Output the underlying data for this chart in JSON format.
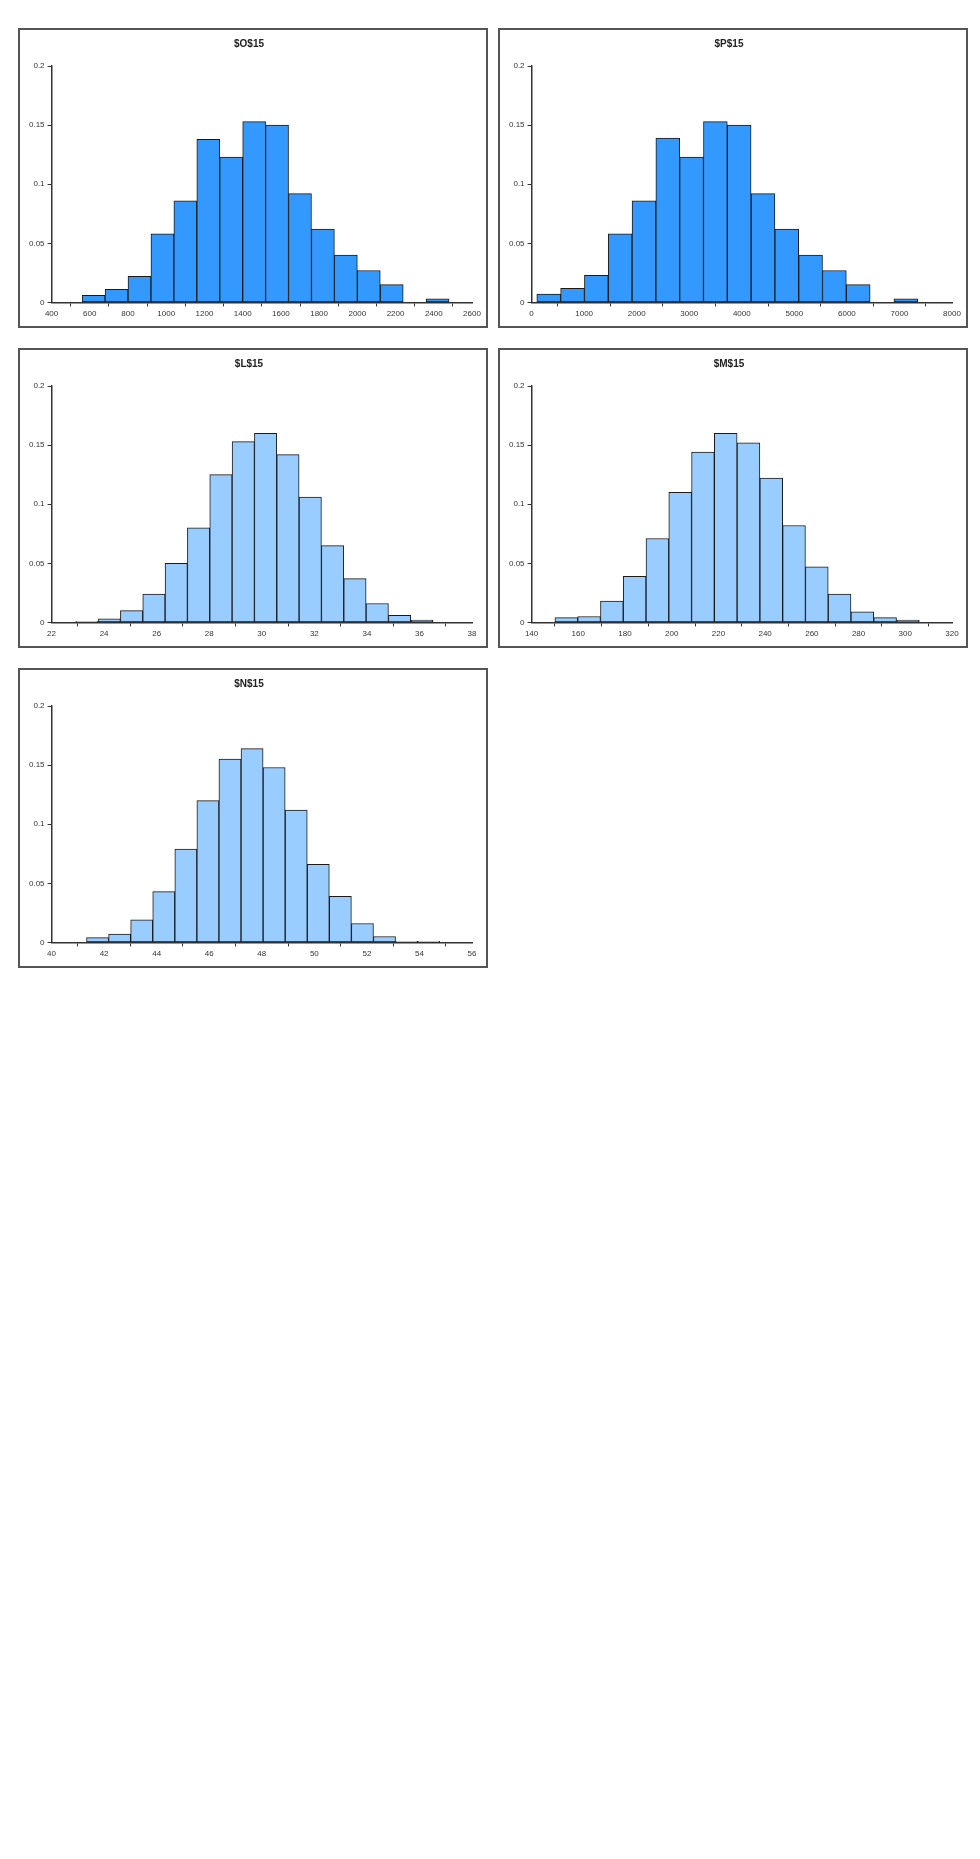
{
  "chart_data": [
    {
      "type": "histogram",
      "title": "$O$15",
      "color": "#3399ff",
      "bins": [
        560,
        680,
        800,
        920,
        1040,
        1160,
        1280,
        1400,
        1520,
        1640,
        1760,
        1880,
        2000,
        2120,
        2240,
        2360,
        2480
      ],
      "values": [
        0.006,
        0.011,
        0.022,
        0.058,
        0.086,
        0.138,
        0.123,
        0.153,
        0.15,
        0.092,
        0.062,
        0.04,
        0.027,
        0.015,
        0,
        0.003
      ],
      "xlim": [
        400,
        2600
      ],
      "xticks": [
        400,
        600,
        800,
        1000,
        1200,
        1400,
        1600,
        1800,
        2000,
        2200,
        2400,
        2600
      ],
      "ylim": [
        0,
        0.2
      ],
      "yticks": [
        0,
        0.05,
        0.1,
        0.15,
        0.2
      ]
    },
    {
      "type": "histogram",
      "title": "$P$15",
      "color": "#3399ff",
      "bins": [
        100,
        553,
        1006,
        1459,
        1912,
        2365,
        2818,
        3271,
        3724,
        4177,
        4630,
        5083,
        5536,
        5989,
        6442,
        6895,
        7348
      ],
      "values": [
        0.007,
        0.012,
        0.023,
        0.058,
        0.086,
        0.139,
        0.123,
        0.153,
        0.15,
        0.092,
        0.062,
        0.04,
        0.027,
        0.015,
        0,
        0.003
      ],
      "xlim": [
        0,
        8000
      ],
      "xticks": [
        0,
        1000,
        2000,
        3000,
        4000,
        5000,
        6000,
        7000,
        8000
      ],
      "ylim": [
        0,
        0.2
      ],
      "yticks": [
        0,
        0.05,
        0.1,
        0.15,
        0.2
      ]
    },
    {
      "type": "histogram",
      "title": "$L$15",
      "color": "#99ccff",
      "bins": [
        22.92,
        23.77,
        24.62,
        25.47,
        26.32,
        27.17,
        28.02,
        28.87,
        29.72,
        30.57,
        31.42,
        32.27,
        33.12,
        33.97,
        34.82,
        35.67,
        36.52
      ],
      "values": [
        0.001,
        0.003,
        0.01,
        0.024,
        0.05,
        0.08,
        0.125,
        0.153,
        0.16,
        0.142,
        0.106,
        0.065,
        0.037,
        0.016,
        0.006,
        0.002
      ],
      "xlim": [
        22,
        38
      ],
      "xticks": [
        22,
        24,
        26,
        28,
        30,
        32,
        34,
        36,
        38
      ],
      "ylim": [
        0,
        0.2
      ],
      "yticks": [
        0,
        0.05,
        0.1,
        0.15,
        0.2
      ]
    },
    {
      "type": "histogram",
      "title": "$M$15",
      "color": "#99ccff",
      "bins": [
        150,
        159.75,
        169.5,
        179.25,
        189,
        198.75,
        208.5,
        218.25,
        228,
        237.75,
        247.5,
        257.25,
        267,
        276.75,
        286.5,
        296.25,
        306
      ],
      "values": [
        0.004,
        0.005,
        0.018,
        0.039,
        0.071,
        0.11,
        0.144,
        0.16,
        0.152,
        0.122,
        0.082,
        0.047,
        0.024,
        0.009,
        0.004,
        0.002
      ],
      "xlim": [
        140,
        320
      ],
      "xticks": [
        140,
        160,
        180,
        200,
        220,
        240,
        260,
        280,
        300,
        320
      ],
      "ylim": [
        0,
        0.2
      ],
      "yticks": [
        0,
        0.05,
        0.1,
        0.15,
        0.2
      ]
    },
    {
      "type": "histogram",
      "title": "$N$15",
      "color": "#99ccff",
      "bins": [
        41.33,
        42.17,
        43.01,
        43.85,
        44.69,
        45.53,
        46.37,
        47.21,
        48.05,
        48.89,
        49.73,
        50.57,
        51.41,
        52.25,
        53.09,
        53.93,
        54.77
      ],
      "values": [
        0.004,
        0.007,
        0.019,
        0.043,
        0.079,
        0.12,
        0.155,
        0.164,
        0.148,
        0.112,
        0.066,
        0.039,
        0.016,
        0.005,
        0.001,
        0.001
      ],
      "xlim": [
        40,
        56
      ],
      "xticks": [
        40,
        42,
        44,
        46,
        48,
        50,
        52,
        54,
        56
      ],
      "ylim": [
        0,
        0.2
      ],
      "yticks": [
        0,
        0.05,
        0.1,
        0.15,
        0.2
      ]
    }
  ]
}
